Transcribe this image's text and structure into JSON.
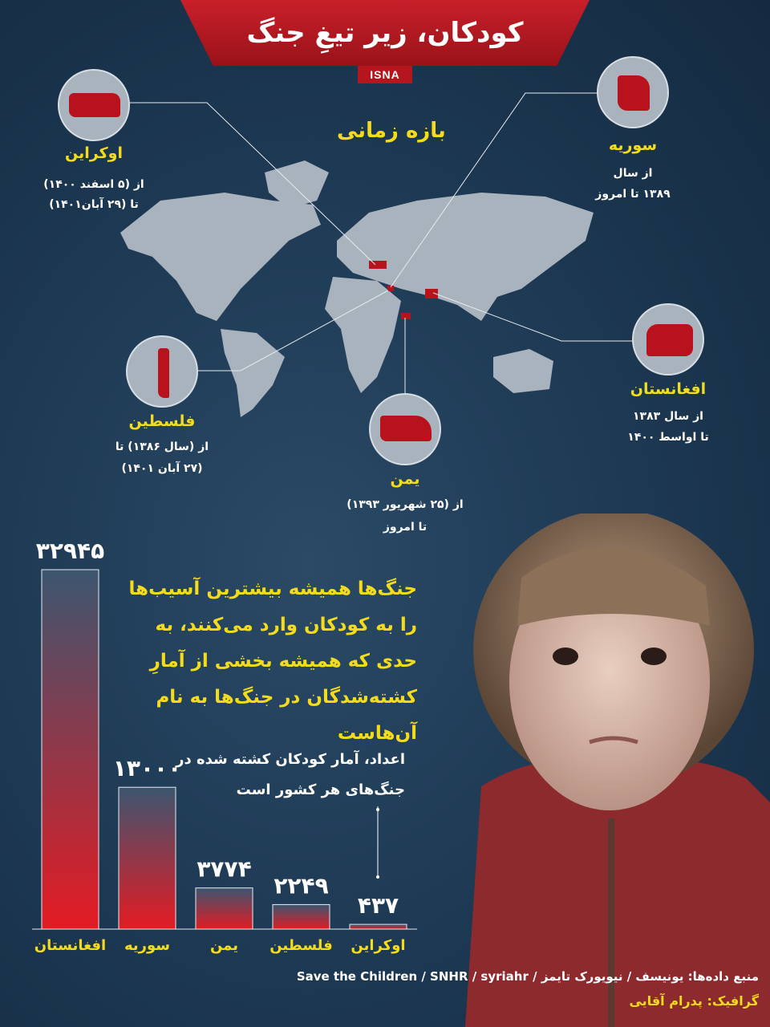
{
  "title": "کودکان، زیر تیغِ جنگ",
  "logo": "ISNA",
  "period_heading": "بازه زمانی",
  "countries": [
    {
      "name": "اوکراین",
      "line1": "از (۵ اسفند ۱۴۰۰)",
      "line2": "تا (۲۹ آبان۱۴۰۱)"
    },
    {
      "name": "سوریه",
      "line1": "از سال",
      "line2": "۱۳۸۹ تا امروز"
    },
    {
      "name": "فلسطین",
      "line1": "از (سال ۱۳۸۶) تا",
      "line2": "(۲۷ آبان ۱۴۰۱)"
    },
    {
      "name": "یمن",
      "line1": "از (۲۵ شهریور ۱۳۹۳)",
      "line2": "تا امروز"
    },
    {
      "name": "افغانستان",
      "line1": "از سال ۱۳۸۳",
      "line2": "تا اواسط ۱۴۰۰"
    }
  ],
  "headline": "جنگ‌ها همیشه بیشترین آسیب‌ها را به کودکان وارد می‌کنند، به حدی که همیشه بخشی از آمارِ کشته‌شدگان در جنگ‌ها به نام آن‌هاست",
  "note": "اعداد، آمار کودکان کشته شده در جنگ‌های هر کشور است",
  "source": "منبع داده‌ها: یونیسف / نیویورک تایمز / Save the Children / SNHR / syriahr",
  "credit": "گرافیک: پدرام آقایی",
  "colors": {
    "accent": "#c8202a",
    "highlight": "#f5dc1a",
    "background": "#1d3a55",
    "map": "#a9b3bd"
  },
  "chart_data": {
    "type": "bar",
    "categories": [
      "افغانستان",
      "سوریه",
      "یمن",
      "فلسطین",
      "اوکراین"
    ],
    "values": [
      32945,
      13000,
      3774,
      2249,
      437
    ],
    "value_labels": [
      "۳۲۹۴۵",
      "۱۳۰۰۰",
      "۳۷۷۴",
      "۲۲۴۹",
      "۴۳۷"
    ],
    "ylim": [
      0,
      32945
    ]
  }
}
